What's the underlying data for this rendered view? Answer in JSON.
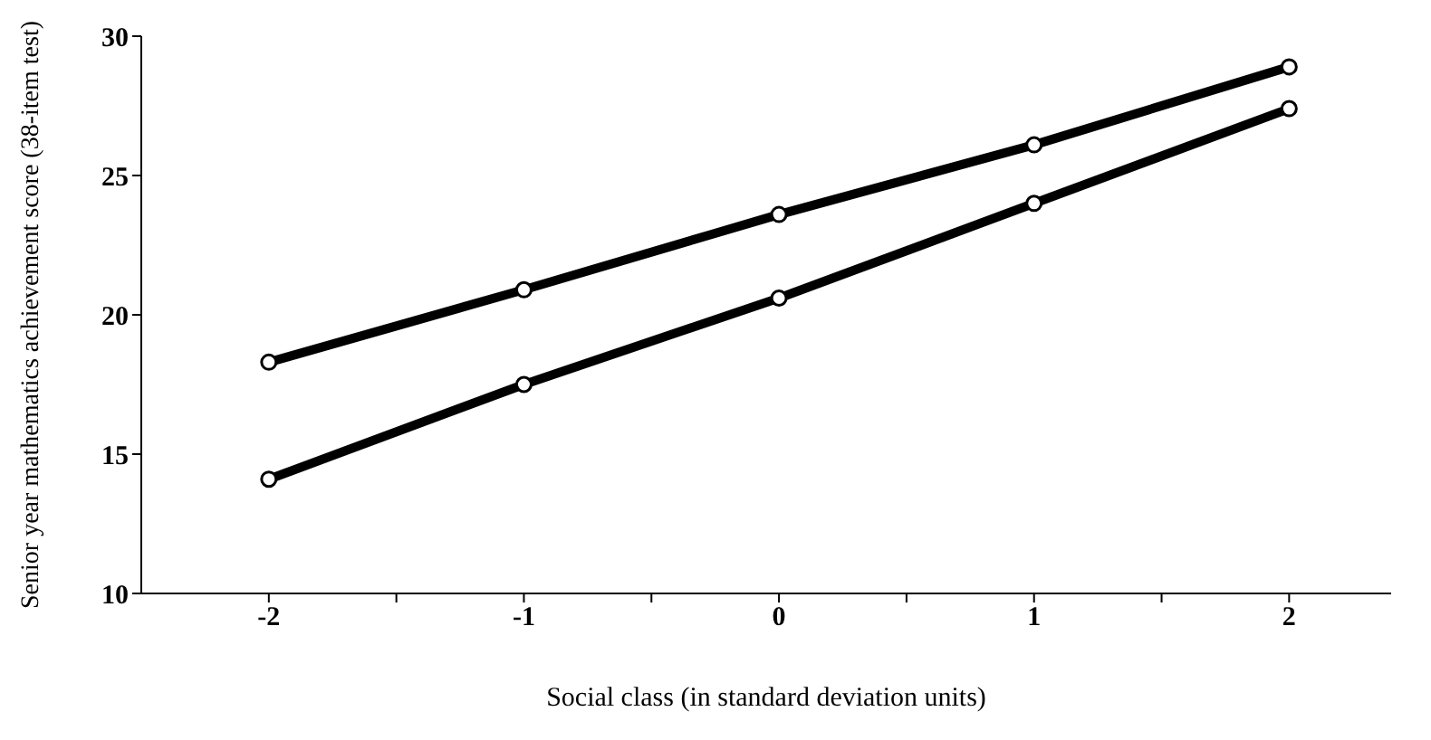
{
  "chart_data": {
    "type": "line",
    "xlabel": "Social class (in standard deviation units)",
    "ylabel": "Senior year mathematics achievement score (38-item test)",
    "x": [
      -2,
      -1,
      0,
      1,
      2
    ],
    "series": [
      {
        "color": "#000000",
        "values": [
          18.3,
          20.9,
          23.6,
          26.1,
          28.9
        ]
      },
      {
        "color": "#000000",
        "values": [
          14.1,
          17.5,
          20.6,
          24.0,
          27.4
        ]
      }
    ],
    "xlim": [
      -2.5,
      2.4
    ],
    "xticks": [
      -2,
      {
        "value": -1.5,
        "label": null
      },
      -1,
      {
        "value": -0.5,
        "label": null
      },
      0,
      {
        "value": 0.5,
        "label": null
      },
      1,
      {
        "value": 1.5,
        "label": null
      },
      2
    ],
    "ylim": [
      10,
      30
    ],
    "yticks": [
      10,
      15,
      20,
      25,
      30
    ],
    "grid": false,
    "legend": false,
    "marker": "circle",
    "line_style": "solid"
  }
}
